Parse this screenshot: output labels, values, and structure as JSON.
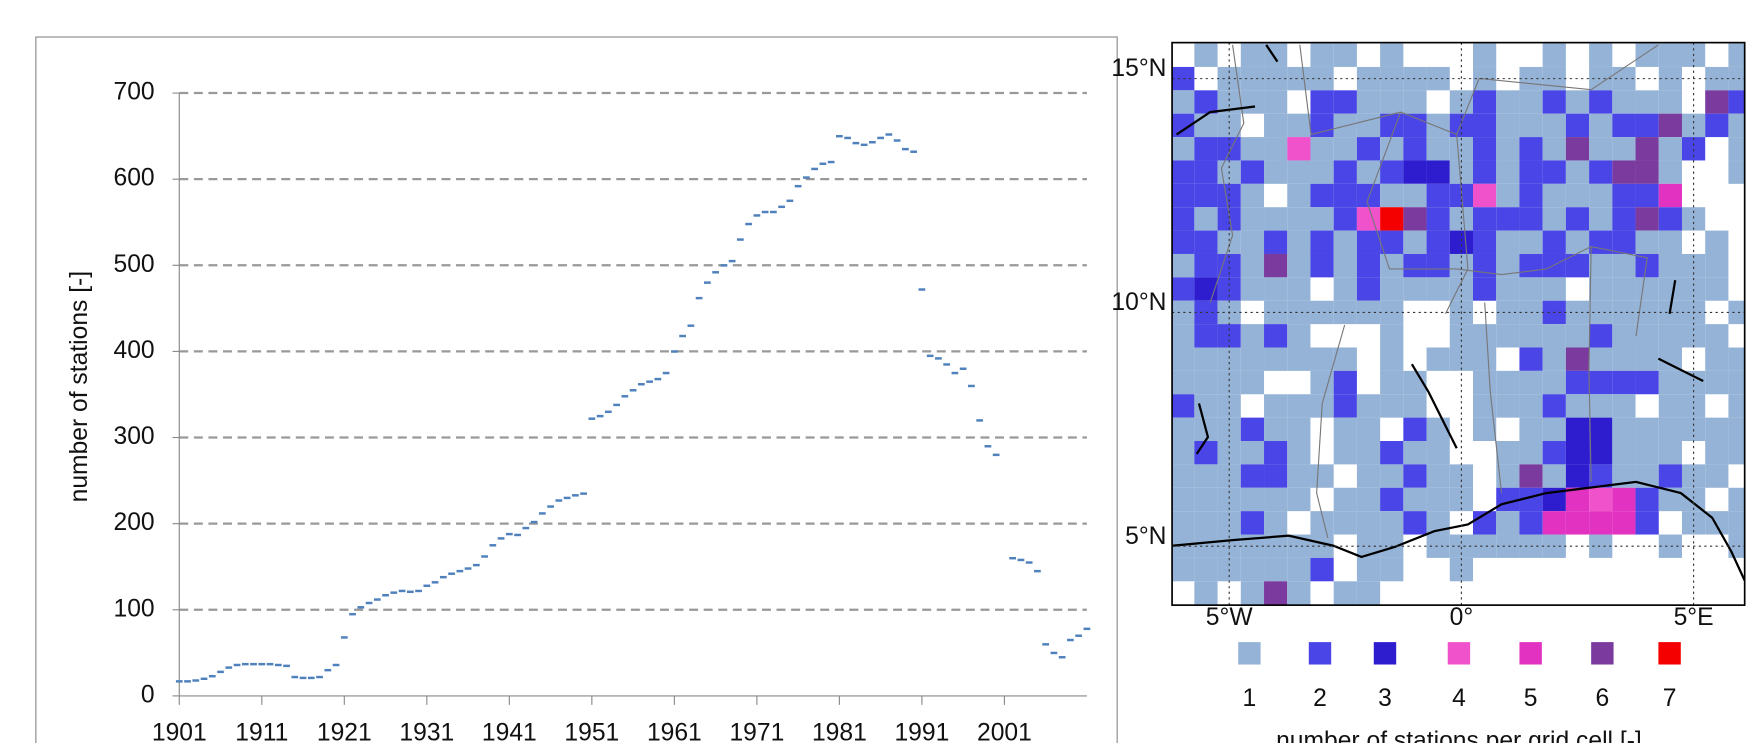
{
  "chart_data": [
    {
      "type": "scatter",
      "y_label": "number of stations [-]",
      "color": "#4f81bd",
      "x": [
        1901,
        1902,
        1903,
        1904,
        1905,
        1906,
        1907,
        1908,
        1909,
        1910,
        1911,
        1912,
        1913,
        1914,
        1915,
        1916,
        1917,
        1918,
        1919,
        1920,
        1921,
        1922,
        1923,
        1924,
        1925,
        1926,
        1927,
        1928,
        1929,
        1930,
        1931,
        1932,
        1933,
        1934,
        1935,
        1936,
        1937,
        1938,
        1939,
        1940,
        1941,
        1942,
        1943,
        1944,
        1945,
        1946,
        1947,
        1948,
        1949,
        1950,
        1951,
        1952,
        1953,
        1954,
        1955,
        1956,
        1957,
        1958,
        1959,
        1960,
        1961,
        1962,
        1963,
        1964,
        1965,
        1966,
        1967,
        1968,
        1969,
        1970,
        1971,
        1972,
        1973,
        1974,
        1975,
        1976,
        1977,
        1978,
        1979,
        1980,
        1981,
        1982,
        1983,
        1984,
        1985,
        1986,
        1987,
        1988,
        1989,
        1990,
        1991,
        1992,
        1993,
        1994,
        1995,
        1996,
        1997,
        1998,
        1999,
        2000,
        2002,
        2003,
        2004,
        2005,
        2006,
        2007,
        2008,
        2009,
        2010,
        2011
      ],
      "values": [
        17,
        17,
        18,
        20,
        23,
        28,
        33,
        36,
        37,
        37,
        37,
        37,
        36,
        35,
        22,
        21,
        21,
        22,
        30,
        36,
        68,
        95,
        103,
        108,
        112,
        117,
        120,
        122,
        121,
        122,
        128,
        132,
        138,
        142,
        145,
        148,
        152,
        162,
        175,
        183,
        188,
        187,
        195,
        202,
        212,
        220,
        227,
        230,
        233,
        235,
        322,
        325,
        330,
        338,
        348,
        355,
        362,
        365,
        368,
        375,
        400,
        418,
        430,
        462,
        480,
        492,
        500,
        505,
        530,
        548,
        558,
        562,
        562,
        568,
        575,
        592,
        602,
        612,
        618,
        620,
        650,
        648,
        642,
        640,
        643,
        648,
        652,
        645,
        635,
        632,
        472,
        395,
        392,
        385,
        375,
        380,
        360,
        320,
        290,
        280,
        160,
        158,
        155,
        145,
        60,
        50,
        45,
        65,
        70,
        78
      ],
      "xlim": [
        1901,
        2011
      ],
      "ylim": [
        0,
        700
      ],
      "xticks": [
        1901,
        1911,
        1921,
        1931,
        1941,
        1951,
        1961,
        1971,
        1981,
        1991,
        2001
      ],
      "yticks": [
        0,
        100,
        200,
        300,
        400,
        500,
        600,
        700
      ],
      "grid": true
    },
    {
      "type": "heatmap",
      "x": [
        -6,
        -5.5,
        -5,
        -4.5,
        -4,
        -3.5,
        -3,
        -2.5,
        -2,
        -1.5,
        -1,
        -0.5,
        0,
        0.5,
        1,
        1.5,
        2,
        2.5,
        3,
        3.5,
        4,
        4.5,
        5,
        5.5,
        6
      ],
      "y": [
        15.5,
        15,
        14.5,
        14,
        13.5,
        13,
        12.5,
        12,
        11.5,
        11,
        10.5,
        10,
        9.5,
        9,
        8.5,
        8,
        7.5,
        7,
        6.5,
        6,
        5.5,
        5,
        4.5,
        4
      ],
      "xlim": [
        -6.23,
        6.1
      ],
      "ylim": [
        3.74,
        15.77
      ],
      "xticks": [
        {
          "value": -5,
          "label": "5°W"
        },
        {
          "value": 0,
          "label": "0°"
        },
        {
          "value": 5,
          "label": "5°E"
        }
      ],
      "yticks": [
        {
          "value": 5,
          "label": "5°N"
        },
        {
          "value": 10,
          "label": "10°N"
        },
        {
          "value": 15,
          "label": "15°N"
        }
      ],
      "z": [
        [
          null,
          1,
          null,
          1,
          1,
          null,
          1,
          1,
          null,
          1,
          null,
          null,
          null,
          1,
          null,
          null,
          1,
          null,
          1,
          null,
          1,
          1,
          1,
          null,
          1
        ],
        [
          2,
          null,
          1,
          1,
          1,
          1,
          1,
          null,
          1,
          1,
          1,
          1,
          null,
          1,
          null,
          1,
          1,
          null,
          1,
          1,
          null,
          1,
          null,
          1,
          1
        ],
        [
          1,
          2,
          1,
          1,
          1,
          null,
          2,
          2,
          1,
          1,
          1,
          null,
          1,
          2,
          1,
          1,
          2,
          1,
          2,
          1,
          1,
          1,
          null,
          6,
          2
        ],
        [
          2,
          1,
          1,
          null,
          1,
          1,
          2,
          1,
          1,
          2,
          2,
          1,
          2,
          2,
          1,
          1,
          1,
          2,
          1,
          2,
          2,
          6,
          1,
          2,
          1
        ],
        [
          1,
          2,
          2,
          1,
          1,
          4,
          1,
          1,
          2,
          1,
          2,
          1,
          1,
          2,
          1,
          2,
          1,
          6,
          1,
          1,
          6,
          1,
          2,
          null,
          1
        ],
        [
          2,
          2,
          1,
          2,
          1,
          1,
          1,
          2,
          1,
          2,
          3,
          3,
          1,
          2,
          1,
          2,
          2,
          1,
          2,
          6,
          6,
          1,
          null,
          null,
          1
        ],
        [
          2,
          2,
          2,
          1,
          null,
          1,
          2,
          2,
          2,
          1,
          1,
          2,
          2,
          4,
          1,
          2,
          1,
          1,
          1,
          2,
          2,
          5,
          null,
          null,
          null
        ],
        [
          2,
          1,
          2,
          1,
          1,
          1,
          1,
          2,
          4,
          7,
          6,
          2,
          1,
          2,
          2,
          2,
          1,
          2,
          1,
          2,
          6,
          2,
          1,
          null,
          null
        ],
        [
          2,
          2,
          1,
          1,
          2,
          1,
          2,
          1,
          2,
          2,
          1,
          2,
          3,
          2,
          1,
          1,
          2,
          1,
          2,
          2,
          1,
          1,
          null,
          1,
          null
        ],
        [
          1,
          2,
          2,
          1,
          6,
          1,
          2,
          1,
          2,
          1,
          2,
          2,
          1,
          2,
          1,
          2,
          2,
          2,
          1,
          1,
          2,
          1,
          1,
          1,
          null
        ],
        [
          2,
          3,
          2,
          1,
          1,
          1,
          null,
          1,
          2,
          1,
          1,
          1,
          1,
          2,
          1,
          1,
          1,
          null,
          1,
          1,
          1,
          1,
          1,
          1,
          null
        ],
        [
          1,
          2,
          1,
          null,
          1,
          1,
          1,
          1,
          1,
          1,
          null,
          null,
          1,
          null,
          1,
          1,
          2,
          1,
          1,
          1,
          1,
          1,
          1,
          null,
          1
        ],
        [
          1,
          2,
          2,
          1,
          2,
          1,
          null,
          null,
          null,
          1,
          null,
          null,
          1,
          1,
          1,
          1,
          1,
          1,
          2,
          1,
          1,
          1,
          1,
          1,
          null
        ],
        [
          1,
          1,
          1,
          1,
          1,
          1,
          1,
          1,
          null,
          1,
          null,
          1,
          1,
          1,
          null,
          2,
          1,
          6,
          1,
          1,
          1,
          1,
          null,
          1,
          1
        ],
        [
          1,
          1,
          1,
          1,
          null,
          null,
          1,
          2,
          null,
          1,
          1,
          null,
          null,
          1,
          1,
          1,
          1,
          2,
          2,
          2,
          2,
          1,
          1,
          1,
          1
        ],
        [
          2,
          1,
          1,
          null,
          1,
          1,
          1,
          2,
          1,
          1,
          1,
          null,
          null,
          1,
          1,
          1,
          2,
          1,
          1,
          1,
          null,
          1,
          1,
          null,
          1
        ],
        [
          1,
          1,
          1,
          2,
          1,
          1,
          null,
          1,
          1,
          null,
          2,
          1,
          null,
          1,
          null,
          1,
          1,
          3,
          3,
          1,
          1,
          1,
          1,
          1,
          1
        ],
        [
          1,
          2,
          1,
          1,
          2,
          1,
          null,
          1,
          1,
          2,
          1,
          1,
          null,
          null,
          1,
          1,
          2,
          3,
          3,
          1,
          1,
          1,
          null,
          1,
          1
        ],
        [
          1,
          1,
          1,
          2,
          2,
          1,
          1,
          null,
          1,
          1,
          2,
          1,
          1,
          null,
          1,
          6,
          1,
          3,
          2,
          1,
          1,
          2,
          1,
          1,
          null
        ],
        [
          1,
          1,
          1,
          1,
          1,
          1,
          null,
          1,
          1,
          2,
          1,
          1,
          1,
          null,
          2,
          2,
          3,
          5,
          4,
          5,
          2,
          1,
          1,
          null,
          1
        ],
        [
          1,
          1,
          1,
          2,
          1,
          null,
          1,
          1,
          1,
          1,
          2,
          1,
          null,
          2,
          1,
          2,
          5,
          5,
          5,
          5,
          2,
          null,
          1,
          1,
          1
        ],
        [
          1,
          1,
          1,
          1,
          1,
          1,
          1,
          null,
          1,
          1,
          null,
          1,
          1,
          1,
          1,
          1,
          1,
          null,
          1,
          null,
          null,
          1,
          null,
          null,
          1
        ],
        [
          1,
          1,
          1,
          1,
          1,
          1,
          2,
          null,
          1,
          1,
          null,
          null,
          1,
          null,
          null,
          null,
          null,
          null,
          null,
          null,
          null,
          null,
          null,
          null,
          null
        ],
        [
          null,
          1,
          null,
          1,
          6,
          1,
          null,
          1,
          1,
          null,
          null,
          null,
          null,
          null,
          null,
          null,
          null,
          null,
          null,
          null,
          null,
          null,
          null,
          null,
          null
        ]
      ],
      "legend": {
        "values": [
          1,
          2,
          3,
          4,
          5,
          6,
          7
        ],
        "colors": [
          "#95b3d7",
          "#4a45e6",
          "#2d1dcf",
          "#f052cc",
          "#e232c2",
          "#7a3a9e",
          "#f50000"
        ],
        "title": "number of stations per grid cell [-]"
      }
    }
  ]
}
